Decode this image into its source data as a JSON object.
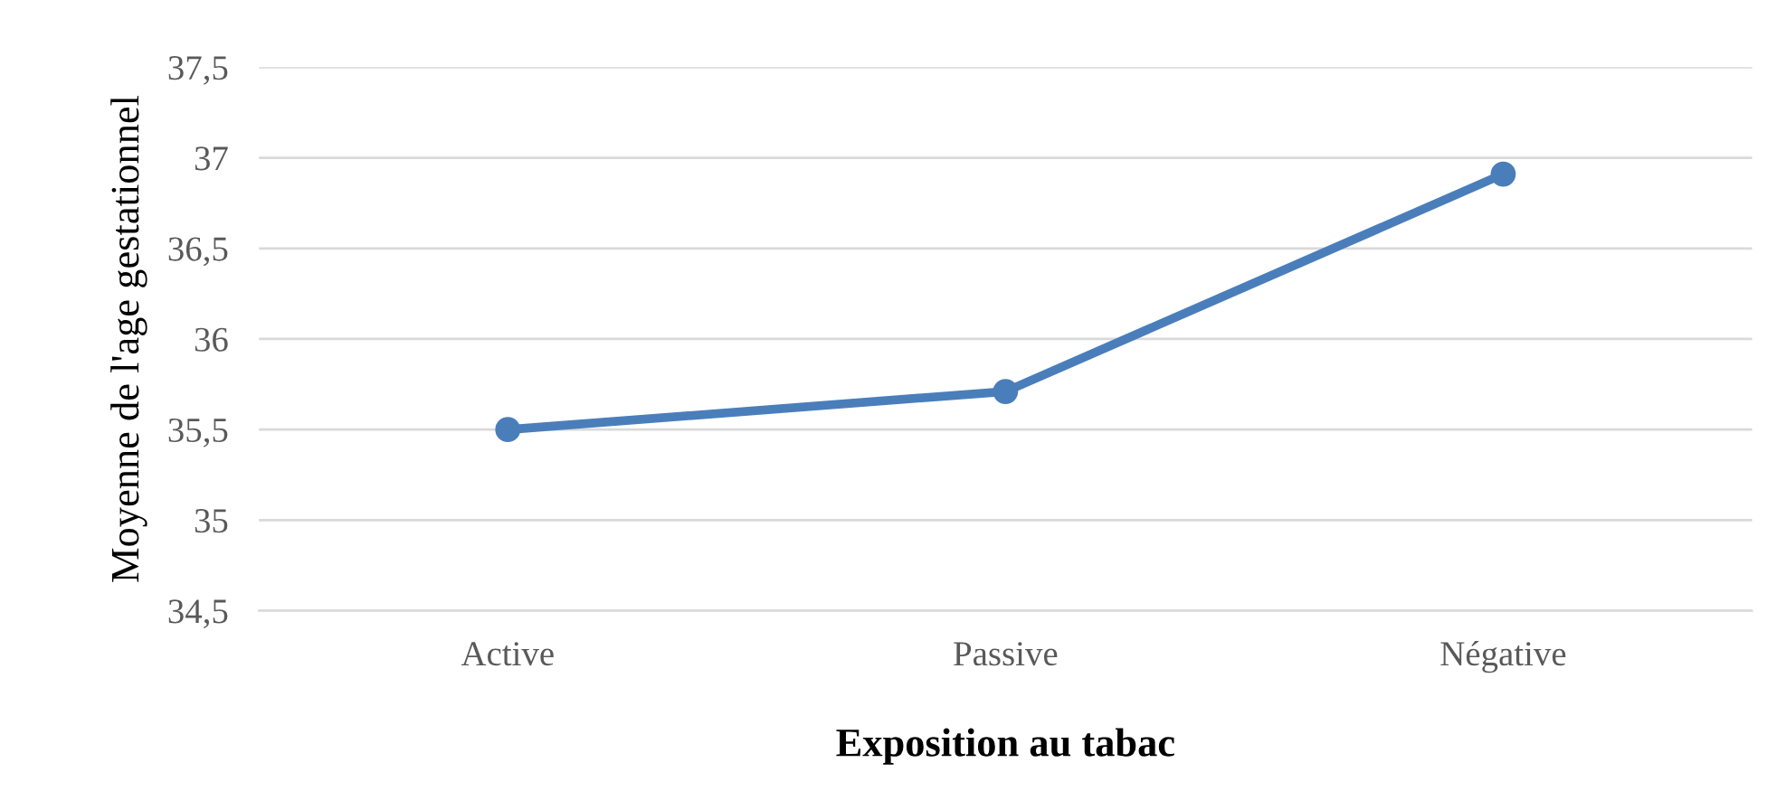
{
  "chart_data": {
    "type": "line",
    "xlabel": "Exposition au tabac",
    "ylabel": "Moyenne de l'age gestationnel",
    "categories": [
      "Active",
      "Passive",
      "Négative"
    ],
    "series": [
      {
        "color": "#4a7ebb",
        "values": [
          35.5,
          35.71,
          36.91
        ]
      }
    ],
    "ylim": [
      34.5,
      37.5
    ],
    "yticks": [
      {
        "value": 34.5,
        "label": "34,5"
      },
      35,
      {
        "value": 35.5,
        "label": "35,5"
      },
      36,
      {
        "value": 36.5,
        "label": "36,5"
      },
      37,
      {
        "value": 37.5,
        "label": "37,5"
      }
    ],
    "grid": "y",
    "marker": "circle",
    "line_style": "solid",
    "legend": false
  }
}
